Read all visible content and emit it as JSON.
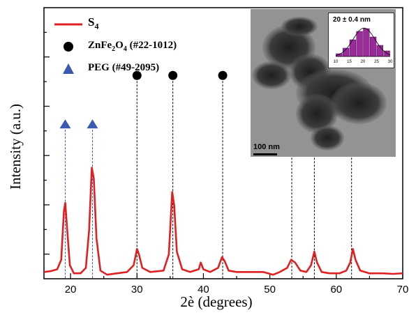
{
  "chart_data": {
    "type": "line",
    "xlabel": "2è (degrees)",
    "ylabel": "Intensity (a.u.)",
    "xlim": [
      16,
      70
    ],
    "ylim": [
      0,
      100
    ],
    "x_ticks": [
      20,
      30,
      40,
      50,
      60,
      70
    ],
    "y_ticks_labeled": false,
    "grid": false,
    "legend_position": "top-left",
    "series": [
      {
        "name": "S4",
        "color": "#e02020",
        "points": [
          [
            16,
            2.5
          ],
          [
            17,
            2.8
          ],
          [
            18,
            3.5
          ],
          [
            18.6,
            7
          ],
          [
            19.0,
            25
          ],
          [
            19.2,
            28
          ],
          [
            19.5,
            18
          ],
          [
            19.9,
            5
          ],
          [
            20.5,
            2
          ],
          [
            21.5,
            2
          ],
          [
            22.3,
            4
          ],
          [
            22.8,
            18
          ],
          [
            23.2,
            41
          ],
          [
            23.5,
            37
          ],
          [
            23.9,
            15
          ],
          [
            24.5,
            3
          ],
          [
            25.5,
            1.5
          ],
          [
            27,
            2
          ],
          [
            28.5,
            2.5
          ],
          [
            29.5,
            5
          ],
          [
            30.0,
            11
          ],
          [
            30.3,
            9
          ],
          [
            30.8,
            4
          ],
          [
            32,
            2.5
          ],
          [
            34,
            3
          ],
          [
            34.8,
            9
          ],
          [
            35.3,
            32
          ],
          [
            35.6,
            27
          ],
          [
            36.0,
            10
          ],
          [
            36.8,
            3.5
          ],
          [
            38,
            2.5
          ],
          [
            39.3,
            3.5
          ],
          [
            39.6,
            6
          ],
          [
            40.0,
            3.5
          ],
          [
            41,
            2.5
          ],
          [
            42.2,
            4
          ],
          [
            42.8,
            8
          ],
          [
            43.2,
            6.5
          ],
          [
            43.8,
            3
          ],
          [
            45,
            2.5
          ],
          [
            47,
            2.5
          ],
          [
            49,
            2.5
          ],
          [
            50.5,
            1.5
          ],
          [
            51.5,
            2.5
          ],
          [
            52.6,
            4
          ],
          [
            53.2,
            7
          ],
          [
            53.8,
            6
          ],
          [
            54.6,
            3
          ],
          [
            55.5,
            2.5
          ],
          [
            56.2,
            5
          ],
          [
            56.7,
            10
          ],
          [
            57.1,
            6
          ],
          [
            57.8,
            2.5
          ],
          [
            59,
            2
          ],
          [
            60.5,
            2
          ],
          [
            61.5,
            3
          ],
          [
            62.1,
            6
          ],
          [
            62.5,
            11
          ],
          [
            62.9,
            7
          ],
          [
            63.6,
            3
          ],
          [
            65,
            2
          ],
          [
            67,
            2
          ],
          [
            68.5,
            1.8
          ],
          [
            70,
            2
          ]
        ]
      }
    ],
    "reference_markers": [
      {
        "series": "ZnFe2O4 (#22-1012)",
        "symbol": "circle",
        "color": "#000000",
        "marker_y": 75,
        "x": [
          30.0,
          35.4,
          42.9,
          53.3,
          56.7,
          62.3
        ]
      },
      {
        "series": "PEG (#49-2095)",
        "symbol": "triangle",
        "color": "#3a5ab0",
        "marker_y": 57,
        "x": [
          19.2,
          23.3
        ]
      }
    ]
  },
  "legend": {
    "items": [
      {
        "symbol": "line",
        "color": "#e02020",
        "label": "S",
        "sub": "4"
      },
      {
        "symbol": "circle",
        "color": "#000000",
        "label_parts": [
          "ZnFe",
          "2",
          "O",
          "4",
          " (#22-1012)"
        ]
      },
      {
        "symbol": "triangle",
        "color": "#3a5ab0",
        "label": "PEG  (#49-2095)"
      }
    ]
  },
  "inset": {
    "scale_bar": "100 nm",
    "histogram_label": "20 ±  0.4 nm",
    "histogram_color": "#9b2a9b",
    "histogram_values": [
      1,
      3,
      6,
      9,
      10,
      7,
      4,
      2
    ],
    "histogram_x_ticks": [
      "10",
      "15",
      "20",
      "25",
      "30"
    ]
  }
}
